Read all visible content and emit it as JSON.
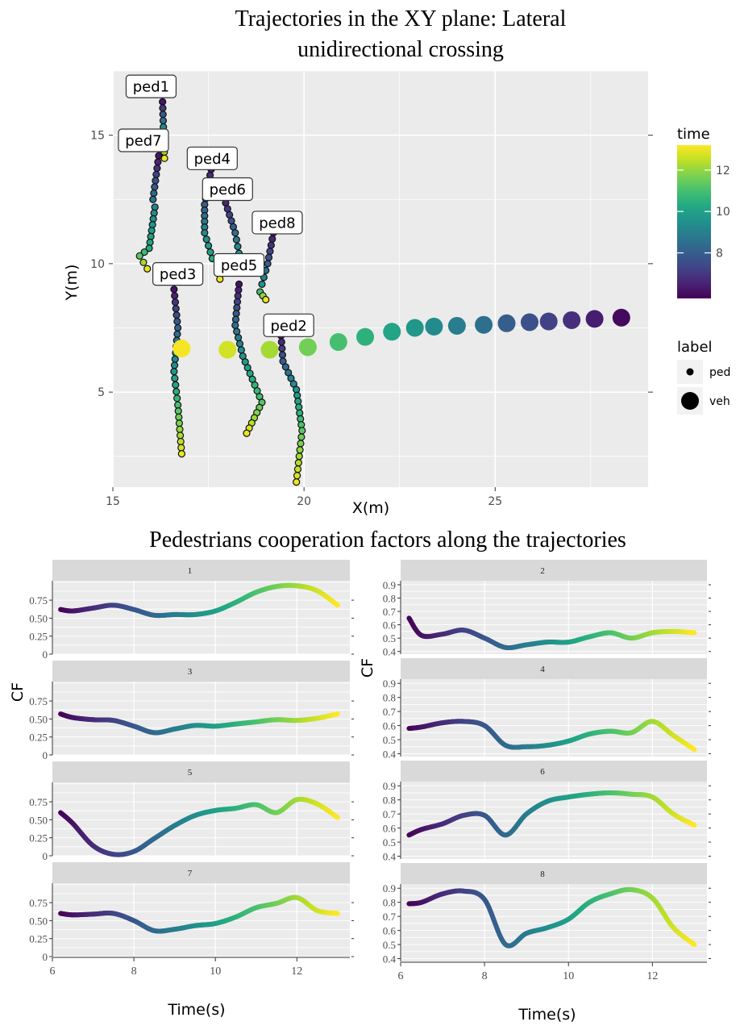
{
  "colors": {
    "panel_bg": "#ebebeb",
    "strip_bg": "#d9d9d9",
    "grid": "#ffffff",
    "viridis": [
      "#440154",
      "#482475",
      "#414487",
      "#355f8d",
      "#2a788e",
      "#21918c",
      "#22a884",
      "#44bf70",
      "#7ad151",
      "#bddf26",
      "#fde725"
    ]
  },
  "chart_data": [
    {
      "type": "scatter",
      "title": "Trajectories in the XY plane: Lateral unidirectional crossing",
      "title_lines": [
        "Trajectories in the XY plane: Lateral",
        "unidirectional crossing"
      ],
      "xlabel": "X(m)",
      "ylabel": "Y(m)",
      "xlim": [
        15,
        29
      ],
      "ylim": [
        1.3,
        17.5
      ],
      "xticks": [
        15,
        20,
        25
      ],
      "yticks": [
        5,
        10,
        15
      ],
      "grid": true,
      "color_scale": "viridis",
      "color_limits": [
        5.8,
        13.2
      ],
      "legend_time": {
        "title": "time",
        "ticks": [
          8,
          10,
          12
        ]
      },
      "legend_label": {
        "title": "label",
        "entries": [
          "ped",
          "veh"
        ]
      },
      "pedestrians": [
        {
          "name": "ped1",
          "points": [
            [
              16.3,
              16.3,
              6.2
            ],
            [
              16.35,
              14.1,
              13.0
            ]
          ],
          "label_at": [
            16.0,
            16.9
          ]
        },
        {
          "name": "ped7",
          "points": [
            [
              16.2,
              14.2,
              6.2
            ],
            [
              16.05,
              12.5,
              8.6
            ],
            [
              16.1,
              12.2,
              9.2
            ],
            [
              15.95,
              10.6,
              10.3
            ],
            [
              15.7,
              10.3,
              11.3
            ],
            [
              15.9,
              9.8,
              13.0
            ]
          ],
          "label_at": [
            15.8,
            14.8
          ]
        },
        {
          "name": "ped4",
          "points": [
            [
              17.6,
              13.9,
              6.2
            ],
            [
              17.4,
              12.3,
              8.0
            ],
            [
              17.4,
              11.2,
              9.2
            ],
            [
              17.6,
              10.2,
              10.3
            ],
            [
              18.3,
              10.2,
              11.5
            ],
            [
              17.8,
              9.6,
              13.0
            ]
          ],
          "label_at": [
            17.6,
            14.1
          ]
        },
        {
          "name": "ped6",
          "points": [
            [
              17.9,
              12.6,
              6.2
            ],
            [
              18.2,
              11.2,
              8.4
            ],
            [
              18.3,
              10.4,
              9.6
            ],
            [
              18.0,
              9.9,
              10.8
            ],
            [
              17.8,
              9.4,
              13.0
            ]
          ],
          "label_at": [
            18.0,
            12.9
          ]
        },
        {
          "name": "ped8",
          "points": [
            [
              19.2,
              11.2,
              6.2
            ],
            [
              19.05,
              10.0,
              8.0
            ],
            [
              18.9,
              9.2,
              9.6
            ],
            [
              18.85,
              8.9,
              11.0
            ],
            [
              19.0,
              8.6,
              13.0
            ]
          ],
          "label_at": [
            19.3,
            11.6
          ]
        },
        {
          "name": "ped5",
          "points": [
            [
              18.3,
              9.2,
              6.2
            ],
            [
              18.2,
              7.6,
              8.5
            ],
            [
              18.4,
              6.4,
              9.6
            ],
            [
              18.9,
              4.6,
              11.2
            ],
            [
              18.5,
              3.4,
              13.0
            ]
          ],
          "label_at": [
            18.3,
            9.95
          ]
        },
        {
          "name": "ped3",
          "points": [
            [
              16.6,
              9.0,
              6.2
            ],
            [
              16.7,
              7.5,
              8.2
            ],
            [
              16.6,
              5.8,
              9.6
            ],
            [
              16.7,
              4.5,
              11.0
            ],
            [
              16.8,
              2.6,
              13.0
            ]
          ],
          "label_at": [
            16.7,
            9.6
          ]
        },
        {
          "name": "ped2",
          "points": [
            [
              19.4,
              7.2,
              6.2
            ],
            [
              19.45,
              6.2,
              8.0
            ],
            [
              19.8,
              5.1,
              9.6
            ],
            [
              19.95,
              3.5,
              11.3
            ],
            [
              19.8,
              1.5,
              13.0
            ]
          ],
          "label_at": [
            19.6,
            7.6
          ]
        }
      ],
      "vehicle": {
        "points": [
          [
            28.3,
            7.9,
            6.0
          ],
          [
            27.6,
            7.85,
            6.4
          ],
          [
            27.0,
            7.8,
            6.8
          ],
          [
            26.4,
            7.75,
            7.2
          ],
          [
            25.9,
            7.72,
            7.6
          ],
          [
            25.3,
            7.68,
            8.0
          ],
          [
            24.7,
            7.62,
            8.5
          ],
          [
            24.0,
            7.58,
            8.9
          ],
          [
            23.4,
            7.55,
            9.3
          ],
          [
            22.9,
            7.5,
            9.7
          ],
          [
            22.3,
            7.35,
            10.1
          ],
          [
            21.6,
            7.15,
            10.5
          ],
          [
            20.9,
            6.95,
            11.0
          ],
          [
            20.1,
            6.75,
            11.6
          ],
          [
            19.1,
            6.65,
            12.2
          ],
          [
            18.0,
            6.65,
            12.7
          ],
          [
            16.8,
            6.7,
            13.1
          ]
        ]
      }
    },
    {
      "type": "line",
      "title": "Pedestrians cooperation factors along the trajectories",
      "xlabel": "Time(s)",
      "ylabel": "CF",
      "xlim": [
        6,
        13.3
      ],
      "xticks": [
        6,
        8,
        10,
        12
      ],
      "color_scale": "viridis",
      "color_limits": [
        6.2,
        13.0
      ],
      "left_yticks": [
        "0",
        "0.25",
        "0.50",
        "0.75"
      ],
      "right_yticks": [
        "0.4",
        "0.5",
        "0.6",
        "0.7",
        "0.8",
        "0.9"
      ],
      "panels": [
        {
          "name": "1",
          "column": "left",
          "ylim": [
            0,
            1.02
          ],
          "t": [
            6.2,
            6.5,
            7.0,
            7.5,
            8.0,
            8.5,
            9.0,
            9.5,
            10.0,
            10.5,
            11.0,
            11.5,
            12.0,
            12.5,
            13.0
          ],
          "cf": [
            0.62,
            0.6,
            0.64,
            0.68,
            0.62,
            0.54,
            0.55,
            0.55,
            0.6,
            0.72,
            0.86,
            0.94,
            0.95,
            0.88,
            0.68
          ]
        },
        {
          "name": "2",
          "column": "right",
          "ylim": [
            0.38,
            0.93
          ],
          "t": [
            6.2,
            6.5,
            7.0,
            7.5,
            8.0,
            8.5,
            9.0,
            9.5,
            10.0,
            10.5,
            11.0,
            11.5,
            12.0,
            12.5,
            13.0
          ],
          "cf": [
            0.65,
            0.52,
            0.53,
            0.56,
            0.5,
            0.43,
            0.45,
            0.47,
            0.47,
            0.51,
            0.54,
            0.5,
            0.54,
            0.55,
            0.54
          ]
        },
        {
          "name": "3",
          "column": "left",
          "ylim": [
            0,
            1.02
          ],
          "t": [
            6.2,
            6.5,
            7.0,
            7.5,
            8.0,
            8.5,
            9.0,
            9.5,
            10.0,
            10.5,
            11.0,
            11.5,
            12.0,
            12.5,
            13.0
          ],
          "cf": [
            0.57,
            0.52,
            0.49,
            0.48,
            0.4,
            0.31,
            0.36,
            0.41,
            0.4,
            0.43,
            0.46,
            0.49,
            0.48,
            0.51,
            0.57
          ]
        },
        {
          "name": "4",
          "column": "right",
          "ylim": [
            0.38,
            0.93
          ],
          "t": [
            6.2,
            6.5,
            7.0,
            7.5,
            8.0,
            8.5,
            9.0,
            9.5,
            10.0,
            10.5,
            11.0,
            11.5,
            12.0,
            12.5,
            13.0
          ],
          "cf": [
            0.58,
            0.59,
            0.62,
            0.63,
            0.6,
            0.46,
            0.45,
            0.46,
            0.49,
            0.54,
            0.56,
            0.55,
            0.63,
            0.53,
            0.43
          ]
        },
        {
          "name": "5",
          "column": "left",
          "ylim": [
            0,
            1.02
          ],
          "t": [
            6.2,
            6.5,
            7.0,
            7.5,
            8.0,
            8.5,
            9.0,
            9.5,
            10.0,
            10.5,
            11.0,
            11.5,
            12.0,
            12.5,
            13.0
          ],
          "cf": [
            0.6,
            0.45,
            0.14,
            0.02,
            0.06,
            0.24,
            0.42,
            0.56,
            0.63,
            0.66,
            0.71,
            0.6,
            0.78,
            0.72,
            0.53
          ]
        },
        {
          "name": "6",
          "column": "right",
          "ylim": [
            0.38,
            0.93
          ],
          "t": [
            6.2,
            6.5,
            7.0,
            7.5,
            8.0,
            8.5,
            9.0,
            9.5,
            10.0,
            10.5,
            11.0,
            11.5,
            12.0,
            12.5,
            13.0
          ],
          "cf": [
            0.55,
            0.59,
            0.63,
            0.69,
            0.69,
            0.55,
            0.7,
            0.79,
            0.82,
            0.84,
            0.85,
            0.84,
            0.82,
            0.7,
            0.62
          ]
        },
        {
          "name": "7",
          "column": "left",
          "ylim": [
            0,
            1.02
          ],
          "t": [
            6.2,
            6.5,
            7.0,
            7.5,
            8.0,
            8.5,
            9.0,
            9.5,
            10.0,
            10.5,
            11.0,
            11.5,
            12.0,
            12.5,
            13.0
          ],
          "cf": [
            0.6,
            0.58,
            0.59,
            0.6,
            0.5,
            0.36,
            0.38,
            0.43,
            0.46,
            0.55,
            0.68,
            0.74,
            0.82,
            0.64,
            0.6
          ]
        },
        {
          "name": "8",
          "column": "right",
          "ylim": [
            0.38,
            0.93
          ],
          "t": [
            6.2,
            6.5,
            7.0,
            7.5,
            8.0,
            8.5,
            9.0,
            9.5,
            10.0,
            10.5,
            11.0,
            11.5,
            12.0,
            12.5,
            13.0
          ],
          "cf": [
            0.79,
            0.8,
            0.86,
            0.88,
            0.82,
            0.5,
            0.58,
            0.62,
            0.68,
            0.8,
            0.86,
            0.89,
            0.83,
            0.62,
            0.5
          ]
        }
      ]
    }
  ]
}
